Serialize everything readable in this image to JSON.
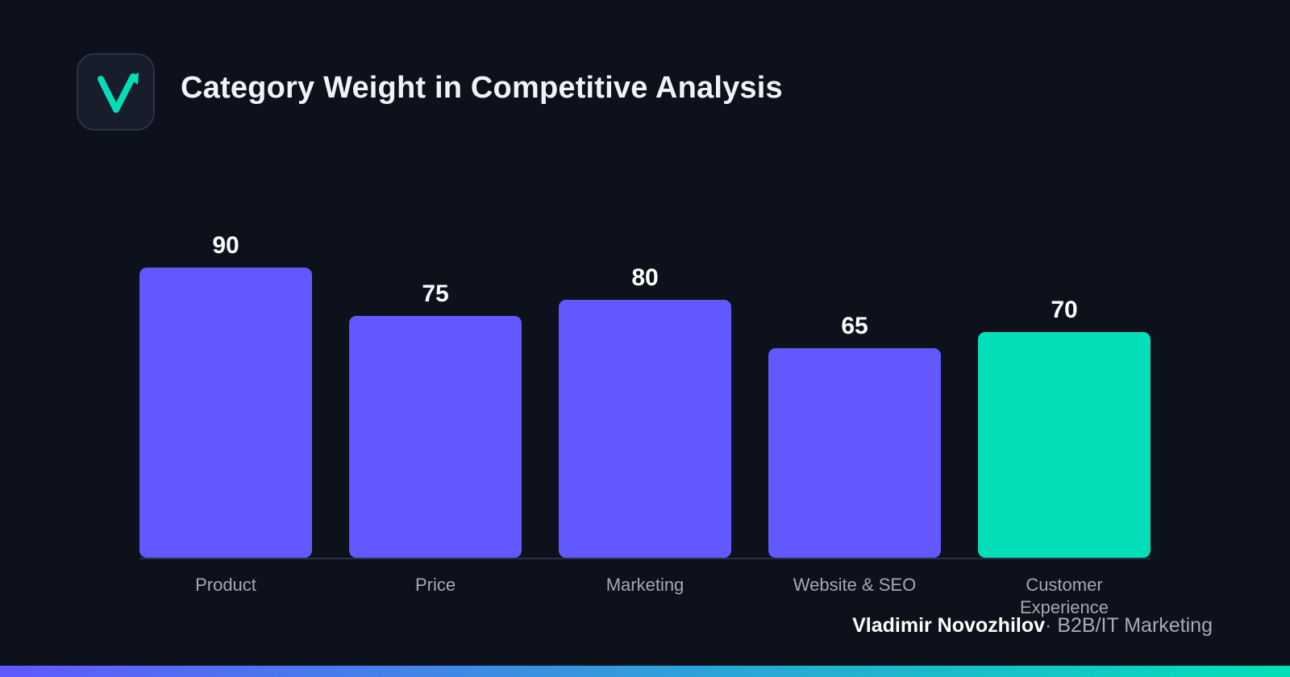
{
  "header": {
    "title": "Category Weight in Competitive Analysis",
    "logo_name": "checkmark-arrow-logo"
  },
  "colors": {
    "background": "#0c111b",
    "bar_primary": "#6159ff",
    "bar_highlight": "#02dfb7",
    "axis_line": "#2b3047",
    "category_label": "#a3a8b4",
    "value_label": "#ffffff",
    "gradient_start": "#6159ff",
    "gradient_end": "#02dfb7"
  },
  "chart_data": {
    "type": "bar",
    "categories": [
      "Product",
      "Price",
      "Marketing",
      "Website & SEO",
      "Customer Experience"
    ],
    "values": [
      90,
      75,
      80,
      65,
      70
    ],
    "highlight_index": 4,
    "title": "Category Weight in Competitive Analysis",
    "xlabel": "",
    "ylabel": "",
    "ylim": [
      0,
      100
    ],
    "grid": false,
    "legend": "none"
  },
  "footer": {
    "author": "Vladimir Novozhilov",
    "separator": "·",
    "role": "B2B/IT Marketing"
  }
}
